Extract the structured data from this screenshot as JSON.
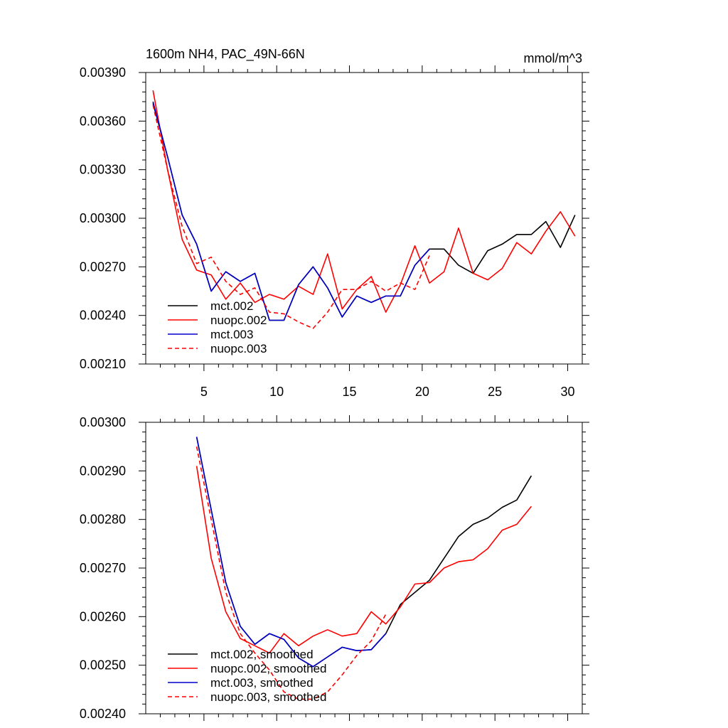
{
  "chart_data": [
    {
      "type": "line",
      "title": "1600m NH4, PAC_49N-66N",
      "units": "mmol/m^3",
      "xlim": [
        1,
        31
      ],
      "ylim": [
        0.0021,
        0.0039
      ],
      "x_ticks": [
        5,
        10,
        15,
        20,
        25,
        30
      ],
      "y_ticks": [
        "0.00210",
        "0.00240",
        "0.00270",
        "0.00300",
        "0.00330",
        "0.00360",
        "0.00390"
      ],
      "legend_position": "bottom-left",
      "series": [
        {
          "name": "mct.002",
          "color": "#000000",
          "dash": "",
          "x": [
            1.5,
            2.5,
            3.5,
            4.5,
            5.5,
            6.5,
            7.5,
            8.5,
            9.5,
            10.5,
            11.5,
            12.5,
            13.5,
            14.5,
            15.5,
            16.5,
            17.5,
            18.5,
            19.5,
            20.5,
            21.5,
            22.5,
            23.5,
            24.5,
            25.5,
            26.5,
            27.5,
            28.5,
            29.5,
            30.5
          ],
          "values": [
            0.00371,
            0.00338,
            0.00302,
            0.00284,
            0.00255,
            0.00267,
            0.00261,
            0.00266,
            0.00237,
            0.00237,
            0.00259,
            0.0027,
            0.00257,
            0.00239,
            0.00252,
            0.00248,
            0.00252,
            0.00252,
            0.00271,
            0.00281,
            0.00281,
            0.00271,
            0.00266,
            0.0028,
            0.00284,
            0.0029,
            0.0029,
            0.00298,
            0.00282,
            0.00302
          ]
        },
        {
          "name": "nuopc.002",
          "color": "#ff0000",
          "dash": "",
          "x": [
            1.5,
            2.5,
            3.5,
            4.5,
            5.5,
            6.5,
            7.5,
            8.5,
            9.5,
            10.5,
            11.5,
            12.5,
            13.5,
            14.5,
            15.5,
            16.5,
            17.5,
            18.5,
            19.5,
            20.5,
            21.5,
            22.5,
            23.5,
            24.5,
            25.5,
            26.5,
            27.5,
            28.5,
            29.5,
            30.5
          ],
          "values": [
            0.00379,
            0.0033,
            0.00287,
            0.00268,
            0.00265,
            0.0025,
            0.0026,
            0.00248,
            0.00253,
            0.0025,
            0.00258,
            0.00253,
            0.00278,
            0.00244,
            0.00256,
            0.00264,
            0.00242,
            0.00259,
            0.00283,
            0.0026,
            0.00267,
            0.00294,
            0.00266,
            0.00262,
            0.00269,
            0.00285,
            0.00278,
            0.00292,
            0.00304,
            0.00289
          ]
        },
        {
          "name": "mct.003",
          "color": "#0000cc",
          "dash": "",
          "x": [
            1.5,
            2.5,
            3.5,
            4.5,
            5.5,
            6.5,
            7.5,
            8.5,
            9.5,
            10.5,
            11.5,
            12.5,
            13.5,
            14.5,
            15.5,
            16.5,
            17.5,
            18.5,
            19.5,
            20.5
          ],
          "values": [
            0.00372,
            0.00338,
            0.00302,
            0.00284,
            0.00255,
            0.00267,
            0.00261,
            0.00266,
            0.00237,
            0.00237,
            0.00259,
            0.0027,
            0.00257,
            0.00239,
            0.00252,
            0.00248,
            0.00252,
            0.00252,
            0.00271,
            0.00281
          ]
        },
        {
          "name": "nuopc.003",
          "color": "#ff0000",
          "dash": "6,4",
          "x": [
            1.5,
            2.5,
            3.5,
            4.5,
            5.5,
            6.5,
            7.5,
            8.5,
            9.5,
            10.5,
            11.5,
            12.5,
            13.5,
            14.5,
            15.5,
            16.5,
            17.5,
            18.5,
            19.5,
            20.5
          ],
          "values": [
            0.0037,
            0.0033,
            0.00295,
            0.00272,
            0.00276,
            0.00261,
            0.00253,
            0.00257,
            0.00242,
            0.00241,
            0.00236,
            0.00232,
            0.00242,
            0.00256,
            0.00256,
            0.00261,
            0.00255,
            0.0026,
            0.00256,
            0.00277
          ]
        }
      ]
    },
    {
      "type": "line",
      "title": "",
      "units": "",
      "xlim": [
        1,
        31
      ],
      "ylim": [
        0.0024,
        0.003
      ],
      "x_ticks": [
        5,
        10,
        15,
        20,
        25,
        30
      ],
      "y_ticks": [
        "0.00240",
        "0.00250",
        "0.00260",
        "0.00270",
        "0.00280",
        "0.00290",
        "0.00300"
      ],
      "legend_position": "bottom-left",
      "series": [
        {
          "name": "mct.002, smoothed",
          "color": "#000000",
          "dash": "",
          "x": [
            4.5,
            5.5,
            6.5,
            7.5,
            8.5,
            9.5,
            10.5,
            11.5,
            12.5,
            13.5,
            14.5,
            15.5,
            16.5,
            17.5,
            18.5,
            19.5,
            20.5,
            21.5,
            22.5,
            23.5,
            24.5,
            25.5,
            26.5,
            27.5
          ],
          "values": [
            0.00297,
            0.00282,
            0.00267,
            0.00258,
            0.002543,
            0.002565,
            0.002553,
            0.002515,
            0.002497,
            0.002517,
            0.002537,
            0.00253,
            0.002532,
            0.002565,
            0.002625,
            0.00265,
            0.002675,
            0.00272,
            0.002765,
            0.00279,
            0.002803,
            0.002825,
            0.00284,
            0.00289
          ]
        },
        {
          "name": "nuopc.002, smoothed",
          "color": "#ff0000",
          "dash": "",
          "x": [
            4.5,
            5.5,
            6.5,
            7.5,
            8.5,
            9.5,
            10.5,
            11.5,
            12.5,
            13.5,
            14.5,
            15.5,
            16.5,
            17.5,
            18.5,
            19.5,
            20.5,
            21.5,
            22.5,
            23.5,
            24.5,
            25.5,
            26.5,
            27.5
          ],
          "values": [
            0.00291,
            0.00272,
            0.00261,
            0.002555,
            0.00254,
            0.002525,
            0.002565,
            0.00254,
            0.00256,
            0.002573,
            0.00256,
            0.002565,
            0.00261,
            0.002585,
            0.00262,
            0.002667,
            0.00267,
            0.0027,
            0.002713,
            0.002717,
            0.00274,
            0.002778,
            0.00279,
            0.002827
          ]
        },
        {
          "name": "mct.003, smoothed",
          "color": "#0000cc",
          "dash": "",
          "x": [
            4.5,
            5.5,
            6.5,
            7.5,
            8.5,
            9.5,
            10.5,
            11.5,
            12.5,
            13.5,
            14.5,
            15.5,
            16.5,
            17.5
          ],
          "values": [
            0.00297,
            0.00282,
            0.00267,
            0.00258,
            0.002543,
            0.002565,
            0.002553,
            0.002515,
            0.002497,
            0.002517,
            0.002537,
            0.00253,
            0.002532,
            0.002565
          ]
        },
        {
          "name": "nuopc.003, smoothed",
          "color": "#ff0000",
          "dash": "6,4",
          "x": [
            4.5,
            5.5,
            6.5,
            7.5,
            8.5,
            9.5,
            10.5,
            11.5,
            12.5,
            13.5,
            14.5,
            15.5,
            16.5,
            17.5
          ],
          "values": [
            0.00295,
            0.0028,
            0.00265,
            0.002565,
            0.002525,
            0.00249,
            0.002445,
            0.00243,
            0.00243,
            0.002445,
            0.00248,
            0.00252,
            0.00255,
            0.002605
          ]
        }
      ]
    }
  ]
}
